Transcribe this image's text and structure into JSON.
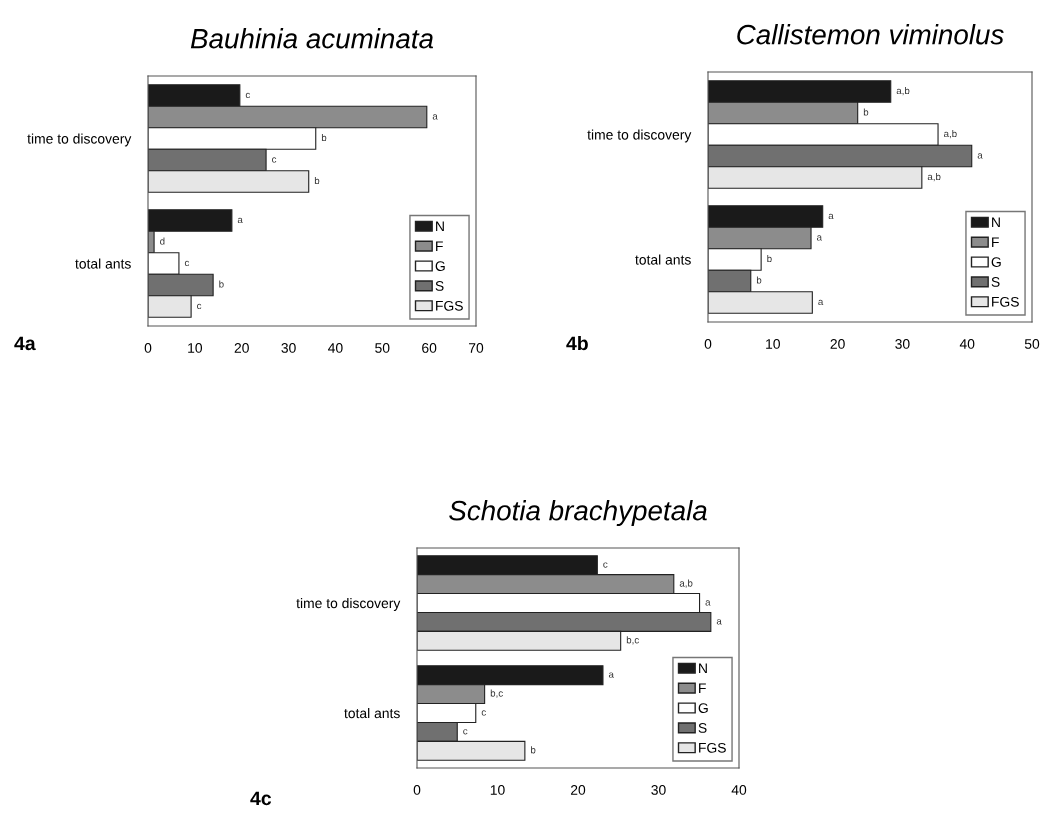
{
  "chart_data": [
    {
      "type": "bar",
      "orientation": "horizontal",
      "title": "Bauhinia acuminata",
      "annotations": [
        "4a"
      ],
      "categories": [
        "time to discovery",
        "total ants"
      ],
      "xlim": [
        0,
        70
      ],
      "xticks": [
        0,
        10,
        20,
        30,
        40,
        50,
        60,
        70
      ],
      "grid": false,
      "legend": "bottom right",
      "series": [
        {
          "name": "N",
          "color": "#1a1a1a",
          "values": [
            19.6,
            17.9
          ],
          "value_labels": [
            "c",
            "a"
          ]
        },
        {
          "name": "F",
          "color": "#8c8c8c",
          "values": [
            59.5,
            1.3
          ],
          "value_labels": [
            "a",
            "d"
          ]
        },
        {
          "name": "G",
          "color": "#ffffff",
          "values": [
            35.8,
            6.6
          ],
          "value_labels": [
            "b",
            "c"
          ]
        },
        {
          "name": "S",
          "color": "#707070",
          "values": [
            25.2,
            13.9
          ],
          "value_labels": [
            "c",
            "b"
          ]
        },
        {
          "name": "FGS",
          "color": "#e6e6e6",
          "values": [
            34.3,
            9.2
          ],
          "value_labels": [
            "b",
            "c"
          ]
        }
      ]
    },
    {
      "type": "bar",
      "orientation": "horizontal",
      "title": "Callistemon viminolus",
      "annotations": [
        "4b"
      ],
      "categories": [
        "time to discovery",
        "total ants"
      ],
      "xlim": [
        0,
        50
      ],
      "xticks": [
        0,
        10,
        20,
        30,
        40,
        50
      ],
      "grid": false,
      "legend": "bottom right",
      "series": [
        {
          "name": "N",
          "color": "#1a1a1a",
          "values": [
            28.2,
            17.7
          ],
          "value_labels": [
            "a,b",
            "a"
          ]
        },
        {
          "name": "F",
          "color": "#8c8c8c",
          "values": [
            23.1,
            15.9
          ],
          "value_labels": [
            "b",
            "a"
          ]
        },
        {
          "name": "G",
          "color": "#ffffff",
          "values": [
            35.5,
            8.2
          ],
          "value_labels": [
            "a,b",
            "b"
          ]
        },
        {
          "name": "S",
          "color": "#707070",
          "values": [
            40.7,
            6.6
          ],
          "value_labels": [
            "a",
            "b"
          ]
        },
        {
          "name": "FGS",
          "color": "#e6e6e6",
          "values": [
            33.0,
            16.1
          ],
          "value_labels": [
            "a,b",
            "a"
          ]
        }
      ]
    },
    {
      "type": "bar",
      "orientation": "horizontal",
      "title": "Schotia brachypetala",
      "annotations": [
        "4c"
      ],
      "categories": [
        "time to discovery",
        "total ants"
      ],
      "xlim": [
        0,
        40
      ],
      "xticks": [
        0,
        10,
        20,
        30,
        40
      ],
      "grid": false,
      "legend": "bottom right",
      "series": [
        {
          "name": "N",
          "color": "#1a1a1a",
          "values": [
            22.4,
            23.1
          ],
          "value_labels": [
            "c",
            "a"
          ]
        },
        {
          "name": "F",
          "color": "#8c8c8c",
          "values": [
            31.9,
            8.4
          ],
          "value_labels": [
            "a,b",
            "b,c"
          ]
        },
        {
          "name": "G",
          "color": "#ffffff",
          "values": [
            35.1,
            7.3
          ],
          "value_labels": [
            "a",
            "c"
          ]
        },
        {
          "name": "S",
          "color": "#707070",
          "values": [
            36.5,
            5.0
          ],
          "value_labels": [
            "a",
            "c"
          ]
        },
        {
          "name": "FGS",
          "color": "#e6e6e6",
          "values": [
            25.3,
            13.4
          ],
          "value_labels": [
            "b,c",
            "b"
          ]
        }
      ]
    }
  ]
}
